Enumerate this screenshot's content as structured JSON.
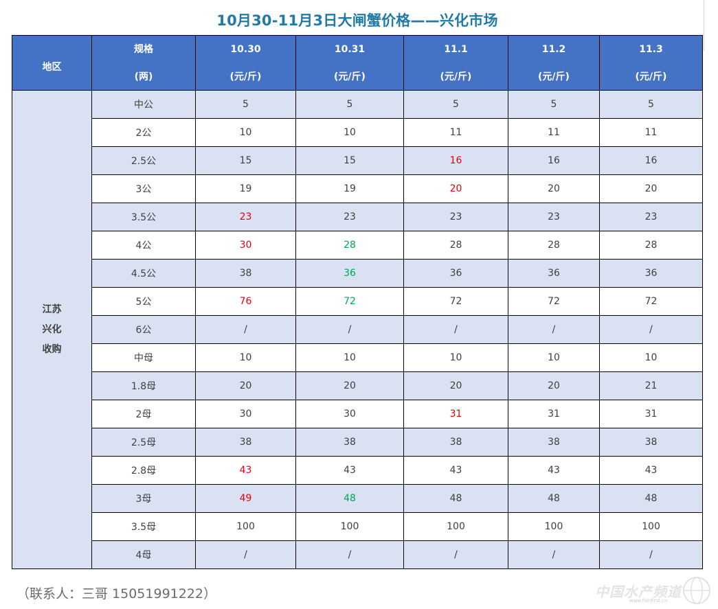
{
  "title": "10月30-11月3日大闸蟹价格——兴化市场",
  "header": {
    "region": "地区",
    "spec_line1": "规格",
    "spec_line2": "(两)",
    "dates": [
      "10.30",
      "10.31",
      "11.1",
      "11.2",
      "11.3"
    ],
    "unit": "(元/斤)"
  },
  "region_lines": [
    "江苏",
    "兴化",
    "收购"
  ],
  "rows": [
    {
      "spec": "中公",
      "values": [
        "5",
        "5",
        "5",
        "5",
        "5"
      ],
      "colors": [
        "",
        "",
        "",
        "",
        ""
      ]
    },
    {
      "spec": "2公",
      "values": [
        "10",
        "10",
        "11",
        "11",
        "11"
      ],
      "colors": [
        "",
        "",
        "",
        "",
        ""
      ]
    },
    {
      "spec": "2.5公",
      "values": [
        "15",
        "15",
        "16",
        "16",
        "16"
      ],
      "colors": [
        "",
        "",
        "red",
        "",
        ""
      ]
    },
    {
      "spec": "3公",
      "values": [
        "19",
        "19",
        "20",
        "20",
        "20"
      ],
      "colors": [
        "",
        "",
        "red",
        "",
        ""
      ]
    },
    {
      "spec": "3.5公",
      "values": [
        "23",
        "23",
        "23",
        "23",
        "23"
      ],
      "colors": [
        "red",
        "",
        "",
        "",
        ""
      ]
    },
    {
      "spec": "4公",
      "values": [
        "30",
        "28",
        "28",
        "28",
        "28"
      ],
      "colors": [
        "red",
        "green",
        "",
        "",
        ""
      ]
    },
    {
      "spec": "4.5公",
      "values": [
        "38",
        "36",
        "36",
        "36",
        "36"
      ],
      "colors": [
        "",
        "green",
        "",
        "",
        ""
      ]
    },
    {
      "spec": "5公",
      "values": [
        "76",
        "72",
        "72",
        "72",
        "72"
      ],
      "colors": [
        "red",
        "green",
        "",
        "",
        ""
      ]
    },
    {
      "spec": "6公",
      "values": [
        "/",
        "/",
        "/",
        "/",
        "/"
      ],
      "colors": [
        "",
        "",
        "",
        "",
        ""
      ]
    },
    {
      "spec": "中母",
      "values": [
        "10",
        "10",
        "10",
        "10",
        "10"
      ],
      "colors": [
        "",
        "",
        "",
        "",
        ""
      ]
    },
    {
      "spec": "1.8母",
      "values": [
        "20",
        "20",
        "20",
        "20",
        "21"
      ],
      "colors": [
        "",
        "",
        "",
        "",
        ""
      ]
    },
    {
      "spec": "2母",
      "values": [
        "30",
        "30",
        "31",
        "31",
        "31"
      ],
      "colors": [
        "",
        "",
        "red",
        "",
        ""
      ]
    },
    {
      "spec": "2.5母",
      "values": [
        "38",
        "38",
        "38",
        "38",
        "38"
      ],
      "colors": [
        "",
        "",
        "",
        "",
        ""
      ]
    },
    {
      "spec": "2.8母",
      "values": [
        "43",
        "43",
        "43",
        "43",
        "43"
      ],
      "colors": [
        "red",
        "",
        "",
        "",
        ""
      ]
    },
    {
      "spec": "3母",
      "values": [
        "49",
        "48",
        "48",
        "48",
        "48"
      ],
      "colors": [
        "red",
        "green",
        "",
        "",
        ""
      ]
    },
    {
      "spec": "3.5母",
      "values": [
        "100",
        "100",
        "100",
        "100",
        "100"
      ],
      "colors": [
        "",
        "",
        "",
        "",
        ""
      ]
    },
    {
      "spec": "4母",
      "values": [
        "/",
        "/",
        "/",
        "/",
        "/"
      ],
      "colors": [
        "",
        "",
        "",
        "",
        ""
      ]
    }
  ],
  "contact": "（联系人：三哥 15051991222）",
  "watermark": {
    "text": "中国水产频道",
    "url": "www.fishfirst.cn"
  },
  "colors": {
    "title": "#1f7aa8",
    "header_bg": "#4472c4",
    "band_bg": "#d9e1f2",
    "red": "#e8000b",
    "green": "#00a651"
  }
}
